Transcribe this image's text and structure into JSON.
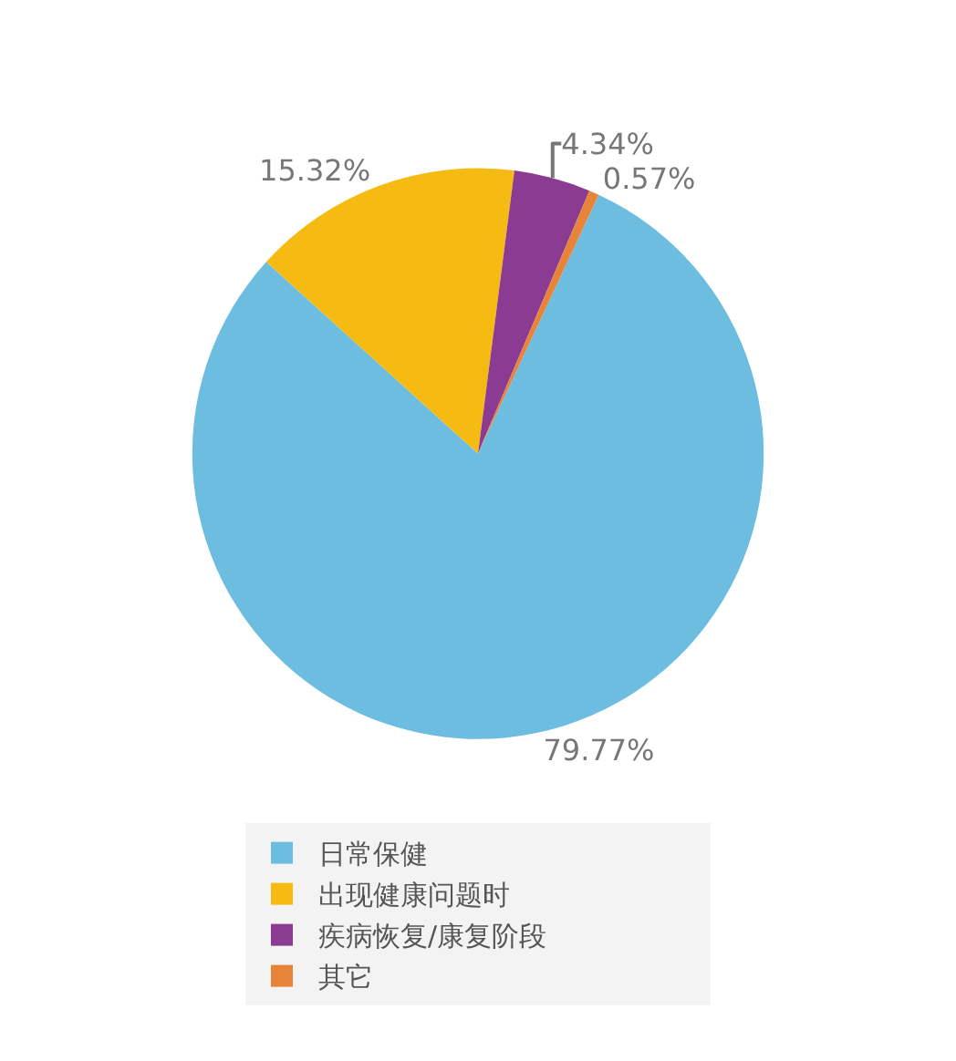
{
  "chart_data": {
    "type": "pie",
    "categories": [
      "日常保健",
      "出现健康问题时",
      "疾病恢复/康复阶段",
      "其它"
    ],
    "values": [
      79.77,
      15.32,
      4.34,
      0.57
    ],
    "value_labels": [
      "79.77%",
      "15.32%",
      "4.34%",
      "0.57%"
    ],
    "colors": [
      "#6dbde0",
      "#f6bb12",
      "#8b3c92",
      "#e8833a"
    ],
    "legend": "bottom"
  }
}
